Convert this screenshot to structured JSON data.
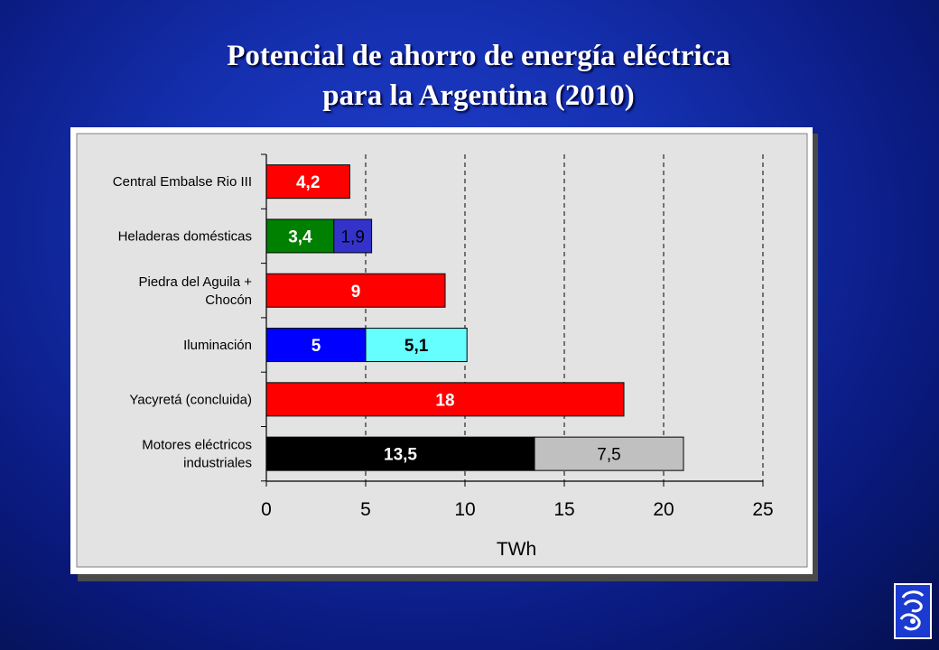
{
  "title": {
    "line1": "Potencial de ahorro de energía eléctrica",
    "line2": "para la Argentina (2010)"
  },
  "chart_data": {
    "type": "bar",
    "orientation": "horizontal",
    "stacked": true,
    "title": "",
    "xlabel": "TWh",
    "ylabel": "",
    "xlim": [
      0,
      25
    ],
    "xticks": [
      "0",
      "5",
      "10",
      "15",
      "20",
      "25"
    ],
    "grid": "vertical dashed",
    "categories": [
      {
        "lines": [
          "Central Embalse Rio III"
        ]
      },
      {
        "lines": [
          "Heladeras domésticas"
        ]
      },
      {
        "lines": [
          "Piedra del Aguila +",
          "Chocón"
        ]
      },
      {
        "lines": [
          "Iluminación"
        ]
      },
      {
        "lines": [
          "Yacyretá (concluida)"
        ]
      },
      {
        "lines": [
          "Motores eléctricos",
          "industriales"
        ]
      }
    ],
    "bars": [
      [
        {
          "value": 4.2,
          "label": "4,2",
          "color": "#ff0000",
          "text_color": "#ffffff",
          "bold": true
        }
      ],
      [
        {
          "value": 3.4,
          "label": "3,4",
          "color": "#008000",
          "text_color": "#ffffff",
          "bold": true
        },
        {
          "value": 1.9,
          "label": "1,9",
          "color": "#3333cc",
          "text_color": "#000000",
          "bold": false
        }
      ],
      [
        {
          "value": 9,
          "label": "9",
          "color": "#ff0000",
          "text_color": "#ffffff",
          "bold": true
        }
      ],
      [
        {
          "value": 5,
          "label": "5",
          "color": "#0000ff",
          "text_color": "#ffffff",
          "bold": true
        },
        {
          "value": 5.1,
          "label": "5,1",
          "color": "#66ffff",
          "text_color": "#000000",
          "bold": true
        }
      ],
      [
        {
          "value": 18,
          "label": "18",
          "color": "#ff0000",
          "text_color": "#ffffff",
          "bold": true
        }
      ],
      [
        {
          "value": 13.5,
          "label": "13,5",
          "color": "#000000",
          "text_color": "#ffffff",
          "bold": true
        },
        {
          "value": 7.5,
          "label": "7,5",
          "color": "#c0c0c0",
          "text_color": "#000000",
          "bold": false
        }
      ]
    ]
  },
  "logo": {
    "icon": "institution-logo-icon"
  }
}
